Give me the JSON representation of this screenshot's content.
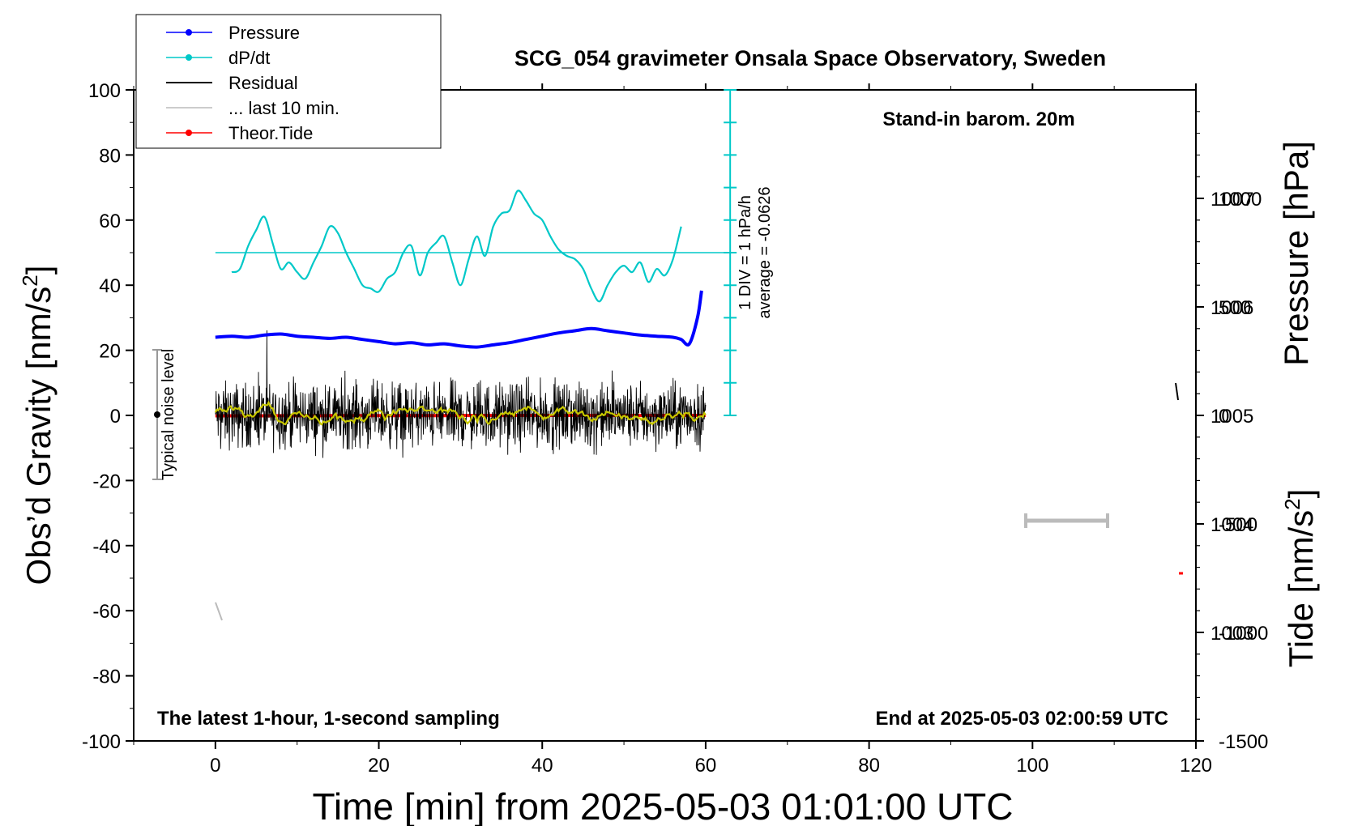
{
  "chart_data": {
    "type": "line",
    "title": "SCG_054 gravimeter Onsala Space Observatory, Sweden",
    "xlabel": "Time [min] from 2025-05-03 01:01:00 UTC",
    "ylabel_left": "Obs’d Gravity [nm/s²]",
    "ylabel_left_main": "Obs’d Gravity [nm/s",
    "ylabel_left_sup": "2",
    "ylabel_left_end": "]",
    "ylabel_right_pressure": "Pressure [hPa]",
    "ylabel_right_tide": "Tide [nm/s²]",
    "ylabel_right_tide_main": "Tide [nm/s",
    "ylabel_right_tide_sup": "2",
    "ylabel_right_tide_end": "]",
    "xlim": [
      -10,
      120
    ],
    "ylim_left": [
      -100,
      100
    ],
    "pressure_lim": [
      1002,
      1008
    ],
    "tide_lim": [
      -1500,
      1500
    ],
    "dpdt_zero_gravity": 50,
    "xticks": [
      "0",
      "20",
      "40",
      "60",
      "80",
      "100",
      "120"
    ],
    "xtick_values": [
      0,
      20,
      40,
      60,
      80,
      100,
      120
    ],
    "yticks_left": [
      "100",
      "80",
      "60",
      "40",
      "20",
      "0",
      "-20",
      "-40",
      "-60",
      "-80",
      "-100"
    ],
    "ytick_left_values": [
      100,
      80,
      60,
      40,
      20,
      0,
      -20,
      -40,
      -60,
      -80,
      -100
    ],
    "yticks_pressure": [
      "1007",
      "1006",
      "1005",
      "1004",
      "1003"
    ],
    "ytick_pressure_values": [
      1007,
      1006,
      1005,
      1004,
      1003
    ],
    "yticks_tide": [
      "1000",
      "500",
      "0",
      "-500",
      "-1000",
      "-1500"
    ],
    "ytick_tide_values": [
      1000,
      500,
      0,
      -500,
      -1000,
      -1500
    ],
    "legend_placement": "top-left",
    "legend": [
      {
        "label": "Pressure",
        "color": "#0000ff",
        "marker": true
      },
      {
        "label": "dP/dt",
        "color": "#00c8c8",
        "marker": true
      },
      {
        "label": "Residual",
        "color": "#000000",
        "marker": false
      },
      {
        "label": "... last 10 min.",
        "color": "#bbbbbb",
        "marker": false
      },
      {
        "label": "Theor.Tide",
        "color": "#ff0000",
        "marker": true
      }
    ],
    "annotations": {
      "stand_in": "Stand-in barom. 20m",
      "latest": "The latest 1-hour, 1-second sampling",
      "end_at": "End at 2025-05-03 02:00:59 UTC",
      "noise": "Typical noise level",
      "scale_div": "1 DIV = 1 hPa/h",
      "average": "average = -0.0626"
    },
    "colors": {
      "pressure": "#0000ff",
      "dpdt": "#00c8c8",
      "residual": "#000000",
      "smoothed": "#c8c800",
      "last10": "#bbbbbb",
      "tide": "#ff0000"
    },
    "series": [
      {
        "name": "Pressure",
        "unit": "hPa",
        "x": [
          0,
          2,
          4,
          6,
          8,
          10,
          12,
          14,
          16,
          18,
          20,
          22,
          24,
          26,
          28,
          30,
          32,
          34,
          36,
          38,
          40,
          42,
          44,
          46,
          48,
          50,
          52,
          54,
          56,
          57,
          58,
          59,
          59.5
        ],
        "y": [
          1005.72,
          1005.73,
          1005.72,
          1005.74,
          1005.75,
          1005.73,
          1005.72,
          1005.71,
          1005.72,
          1005.7,
          1005.68,
          1005.66,
          1005.67,
          1005.65,
          1005.66,
          1005.64,
          1005.63,
          1005.65,
          1005.67,
          1005.7,
          1005.73,
          1005.76,
          1005.78,
          1005.8,
          1005.78,
          1005.76,
          1005.74,
          1005.73,
          1005.72,
          1005.7,
          1005.66,
          1005.9,
          1006.15
        ]
      },
      {
        "name": "dP/dt",
        "unit": "nm/s² (display)",
        "x": [
          2,
          3,
          4,
          5,
          6,
          7,
          8,
          9,
          10,
          11,
          12,
          13,
          14,
          15,
          16,
          17,
          18,
          19,
          20,
          21,
          22,
          23,
          24,
          25,
          26,
          27,
          28,
          29,
          30,
          31,
          32,
          33,
          34,
          35,
          36,
          37,
          38,
          39,
          40,
          41,
          42,
          43,
          44,
          45,
          46,
          47,
          48,
          49,
          50,
          51,
          52,
          53,
          54,
          55,
          56,
          57
        ],
        "y": [
          44,
          45,
          52,
          57,
          61,
          53,
          45,
          47,
          44,
          42,
          47,
          52,
          58,
          56,
          50,
          45,
          40,
          39,
          38,
          42,
          44,
          50,
          52,
          43,
          50,
          53,
          55,
          47,
          40,
          48,
          55,
          49,
          58,
          62,
          63,
          69,
          66,
          62,
          60,
          55,
          51,
          49,
          48,
          45,
          39,
          35,
          40,
          44,
          46,
          44,
          47,
          41,
          45,
          43,
          48,
          58
        ]
      },
      {
        "name": "Residual",
        "unit": "nm/s²",
        "x_start": 0,
        "x_end": 60,
        "amplitude": 6
      },
      {
        "name": "Theor.Tide",
        "unit": "nm/s²",
        "x": [
          0,
          20,
          40,
          60
        ],
        "y": [
          -2,
          -1,
          0,
          0
        ]
      }
    ]
  }
}
